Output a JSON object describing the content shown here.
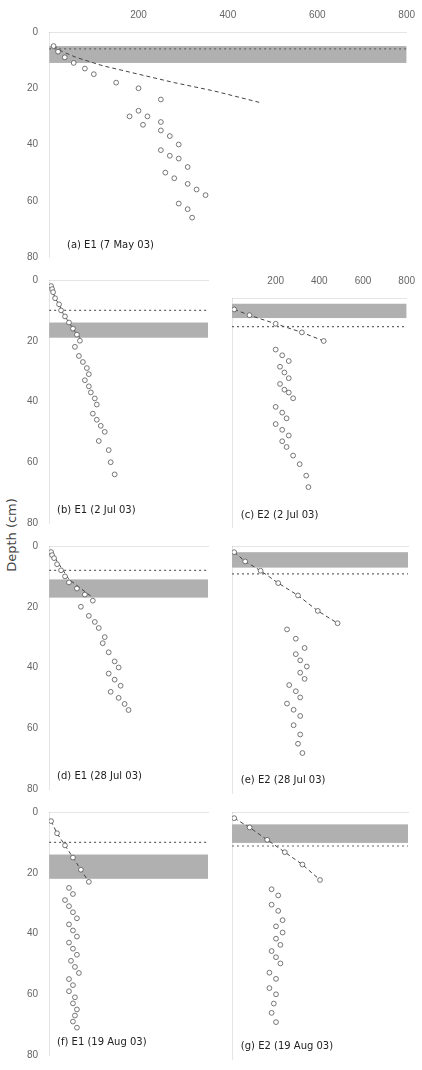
{
  "chart_data": [
    {
      "type": "scatter",
      "annotations": [
        "(a) E1 (7 May 03)"
      ],
      "xlim": [
        0,
        800
      ],
      "xticks": [
        200,
        400,
        600,
        800
      ],
      "ylim": [
        80,
        0
      ],
      "yticks": [
        0,
        20,
        40,
        60,
        80
      ],
      "grid": false,
      "band": {
        "from": 5,
        "to": 11,
        "color": "#b0b0b0"
      },
      "hline": {
        "value": 6,
        "color": "#666666",
        "line_style": "dotted"
      },
      "series": [
        {
          "type": "line",
          "line_style": "dashed",
          "color": "#444444",
          "x": [
            10,
            30,
            60,
            120,
            200,
            280,
            370,
            470
          ],
          "values": [
            5,
            7,
            9,
            12,
            15,
            18,
            21,
            25
          ]
        },
        {
          "type": "scatter",
          "marker": "circle",
          "color": "#555555",
          "x": [
            10,
            20,
            35,
            55,
            80,
            100,
            150,
            200,
            250,
            200,
            220,
            250,
            180,
            210,
            250,
            270,
            290,
            250,
            270,
            290,
            310,
            260,
            280,
            310,
            330,
            350,
            290,
            310,
            320
          ],
          "values": [
            5,
            7,
            9,
            11,
            13,
            15,
            18,
            20,
            24,
            28,
            30,
            32,
            30,
            33,
            35,
            37,
            40,
            42,
            44,
            45,
            48,
            50,
            52,
            54,
            56,
            58,
            61,
            63,
            66
          ]
        }
      ]
    },
    {
      "type": "scatter",
      "annotations": [
        "(b) E1 (2 Jul 03)"
      ],
      "tick_labels": "y",
      "xlim": [
        0,
        800
      ],
      "xticks": [
        200,
        400,
        600,
        800
      ],
      "ylim": [
        80,
        0
      ],
      "yticks": [
        0,
        20,
        40,
        60,
        80
      ],
      "grid": false,
      "band": {
        "from": 14,
        "to": 19,
        "color": "#b0b0b0"
      },
      "hline": {
        "value": 10,
        "color": "#666666",
        "line_style": "dotted"
      },
      "series": [
        {
          "type": "line",
          "line_style": "dashed",
          "color": "#444444",
          "x": [
            10,
            20,
            30,
            50,
            70,
            90,
            110,
            130,
            155
          ],
          "values": [
            2,
            4,
            6,
            8,
            11,
            13,
            15,
            17,
            19
          ]
        },
        {
          "type": "scatter",
          "marker": "circle",
          "color": "#555555",
          "x": [
            10,
            15,
            20,
            30,
            50,
            60,
            80,
            100,
            120,
            140,
            155,
            130,
            150,
            170,
            190,
            200,
            180,
            200,
            210,
            230,
            240,
            220,
            240,
            260,
            280,
            250,
            300,
            310,
            330
          ],
          "values": [
            2,
            3,
            4,
            6,
            8,
            10,
            12,
            14,
            16,
            18,
            20,
            22,
            25,
            27,
            29,
            31,
            33,
            35,
            37,
            39,
            41,
            44,
            46,
            48,
            50,
            53,
            56,
            60,
            64
          ]
        }
      ]
    },
    {
      "type": "scatter",
      "annotations": [
        "(c) E2 (2 Jul 03)"
      ],
      "tick_labels": "x",
      "xlim": [
        0,
        800
      ],
      "xticks": [
        200,
        400,
        600,
        800
      ],
      "ylim": [
        80,
        0
      ],
      "yticks": [
        0,
        20,
        40,
        60,
        80
      ],
      "grid": false,
      "band": {
        "from": 2,
        "to": 7,
        "color": "#b0b0b0"
      },
      "hline": {
        "value": 10,
        "color": "#666666",
        "line_style": "dotted"
      },
      "series": [
        {
          "type": "line",
          "line_style": "dashed",
          "color": "#444444",
          "x": [
            10,
            80,
            200,
            320,
            420
          ],
          "values": [
            4,
            6,
            9,
            12,
            15
          ]
        },
        {
          "type": "scatter",
          "marker": "circle",
          "color": "#555555",
          "x": [
            10,
            80,
            200,
            320,
            420,
            200,
            230,
            260,
            220,
            240,
            260,
            220,
            240,
            260,
            280,
            200,
            230,
            250,
            200,
            230,
            260,
            230,
            250,
            280,
            310,
            340,
            350
          ],
          "values": [
            4,
            6,
            9,
            12,
            15,
            18,
            20,
            22,
            24,
            26,
            28,
            30,
            32,
            33,
            35,
            38,
            40,
            42,
            44,
            46,
            48,
            50,
            52,
            55,
            58,
            62,
            66
          ]
        }
      ]
    },
    {
      "type": "scatter",
      "annotations": [
        "(d) E1 (28 Jul 03)"
      ],
      "ylabel": "Depth (cm)",
      "tick_labels": "y",
      "xlim": [
        0,
        800
      ],
      "xticks": [
        200,
        400,
        600,
        800
      ],
      "ylim": [
        80,
        0
      ],
      "yticks": [
        0,
        20,
        40,
        60,
        80
      ],
      "grid": false,
      "band": {
        "from": 11,
        "to": 17,
        "color": "#b0b0b0"
      },
      "hline": {
        "value": 8,
        "color": "#666666",
        "line_style": "dotted"
      },
      "series": [
        {
          "type": "line",
          "line_style": "dashed",
          "color": "#444444",
          "x": [
            10,
            20,
            40,
            60,
            80,
            100,
            140,
            180,
            220
          ],
          "values": [
            2,
            3,
            5,
            7,
            9,
            11,
            13,
            15,
            17
          ]
        },
        {
          "type": "scatter",
          "marker": "circle",
          "color": "#555555",
          "x": [
            10,
            15,
            25,
            40,
            60,
            80,
            100,
            140,
            180,
            220,
            160,
            200,
            230,
            250,
            280,
            270,
            300,
            330,
            350,
            300,
            330,
            360,
            310,
            350,
            380,
            400
          ],
          "values": [
            2,
            3,
            4,
            6,
            8,
            10,
            12,
            14,
            16,
            18,
            20,
            23,
            25,
            27,
            30,
            32,
            35,
            38,
            40,
            42,
            44,
            46,
            48,
            50,
            52,
            54
          ]
        }
      ]
    },
    {
      "type": "scatter",
      "annotations": [
        "(e) E2 (28 Jul 03)"
      ],
      "tick_labels": false,
      "xlim": [
        0,
        800
      ],
      "xticks": [
        200,
        400,
        600,
        800
      ],
      "ylim": [
        80,
        0
      ],
      "yticks": [
        0,
        20,
        40,
        60,
        80
      ],
      "grid": false,
      "band": {
        "from": 2,
        "to": 7,
        "color": "#b0b0b0"
      },
      "hline": {
        "value": 9,
        "color": "#666666",
        "line_style": "dotted"
      },
      "series": [
        {
          "type": "line",
          "line_style": "dashed",
          "color": "#444444",
          "x": [
            10,
            60,
            130,
            210,
            300,
            390,
            480
          ],
          "values": [
            2,
            5,
            8,
            12,
            16,
            21,
            25
          ]
        },
        {
          "type": "scatter",
          "marker": "circle",
          "color": "#555555",
          "x": [
            10,
            60,
            130,
            210,
            300,
            390,
            480,
            250,
            290,
            330,
            290,
            310,
            340,
            310,
            330,
            260,
            290,
            310,
            250,
            280,
            310,
            280,
            310,
            300,
            320
          ],
          "values": [
            2,
            5,
            8,
            12,
            16,
            21,
            25,
            27,
            30,
            33,
            35,
            37,
            39,
            41,
            43,
            45,
            47,
            49,
            51,
            53,
            55,
            58,
            61,
            64,
            67
          ]
        }
      ]
    },
    {
      "type": "scatter",
      "annotations": [
        "(f) E1 (19 Aug 03)"
      ],
      "tick_labels": "y",
      "xlim": [
        0,
        800
      ],
      "xticks": [
        200,
        400,
        600,
        800
      ],
      "ylim": [
        80,
        0
      ],
      "yticks": [
        0,
        20,
        40,
        60,
        80
      ],
      "grid": false,
      "band": {
        "from": 14,
        "to": 22,
        "color": "#b0b0b0"
      },
      "hline": {
        "value": 10,
        "color": "#666666",
        "line_style": "dotted"
      },
      "series": [
        {
          "type": "line",
          "line_style": "dashed",
          "color": "#444444",
          "x": [
            10,
            40,
            80,
            120,
            160,
            200
          ],
          "values": [
            3,
            7,
            11,
            15,
            19,
            23
          ]
        },
        {
          "type": "scatter",
          "marker": "circle",
          "color": "#555555",
          "x": [
            10,
            40,
            80,
            120,
            160,
            200,
            100,
            120,
            80,
            100,
            120,
            140,
            100,
            120,
            140,
            100,
            120,
            140,
            110,
            130,
            150,
            100,
            120,
            100,
            130,
            120,
            140,
            130,
            120,
            140
          ],
          "values": [
            3,
            7,
            11,
            15,
            19,
            23,
            25,
            27,
            29,
            31,
            33,
            35,
            37,
            39,
            41,
            43,
            45,
            47,
            49,
            51,
            53,
            55,
            57,
            59,
            61,
            63,
            65,
            67,
            69,
            71
          ]
        }
      ]
    },
    {
      "type": "scatter",
      "annotations": [
        "(g) E2 (19 Aug 03)"
      ],
      "tick_labels": false,
      "xlim": [
        0,
        800
      ],
      "xticks": [
        200,
        400,
        600,
        800
      ],
      "ylim": [
        80,
        0
      ],
      "yticks": [
        0,
        20,
        40,
        60,
        80
      ],
      "grid": false,
      "band": {
        "from": 4,
        "to": 10,
        "color": "#b0b0b0"
      },
      "hline": {
        "value": 11,
        "color": "#666666",
        "line_style": "dotted"
      },
      "series": [
        {
          "type": "line",
          "line_style": "dashed",
          "color": "#444444",
          "x": [
            10,
            80,
            160,
            240,
            320,
            400
          ],
          "values": [
            2,
            5,
            9,
            13,
            17,
            22
          ]
        },
        {
          "type": "scatter",
          "marker": "circle",
          "color": "#555555",
          "x": [
            10,
            80,
            160,
            240,
            320,
            400,
            180,
            210,
            180,
            210,
            230,
            200,
            230,
            200,
            220,
            180,
            200,
            220,
            170,
            200,
            170,
            200,
            190,
            180,
            200
          ],
          "values": [
            2,
            5,
            9,
            13,
            17,
            22,
            25,
            27,
            30,
            32,
            35,
            37,
            39,
            41,
            43,
            45,
            47,
            49,
            52,
            54,
            57,
            59,
            62,
            65,
            68
          ]
        }
      ]
    }
  ]
}
